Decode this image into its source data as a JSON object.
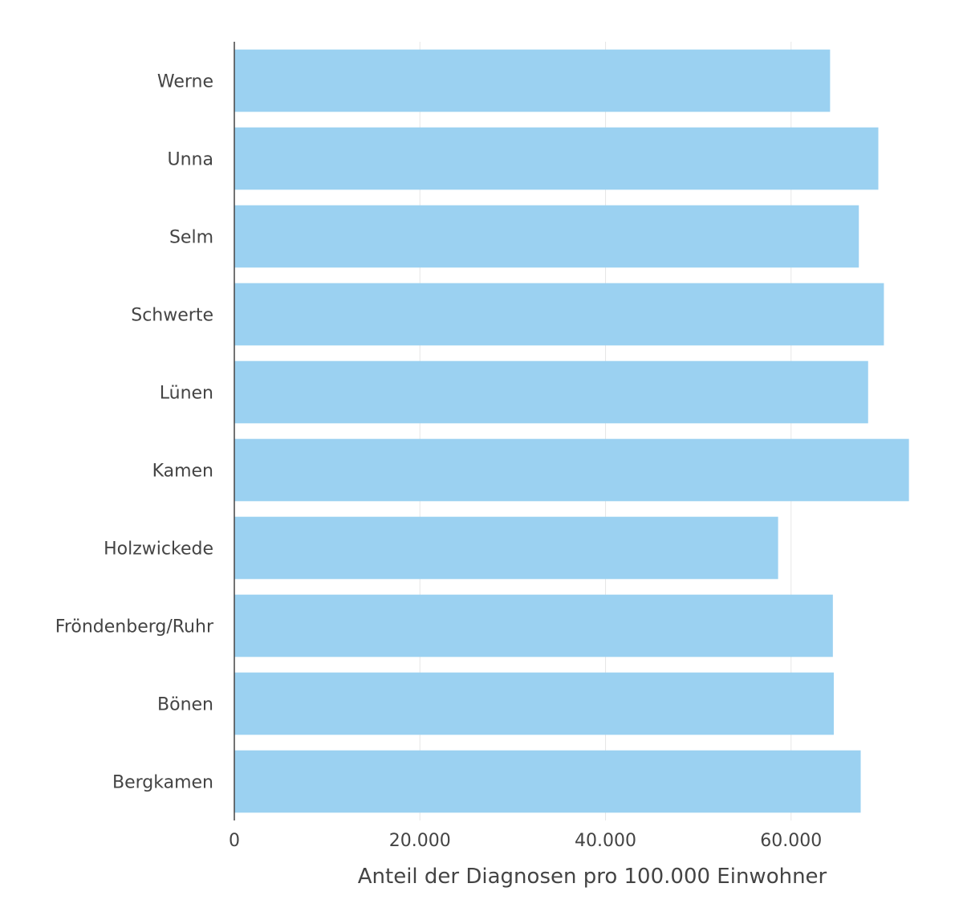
{
  "chart_data": {
    "type": "bar",
    "orientation": "horizontal",
    "categories": [
      "Werne",
      "Unna",
      "Selm",
      "Schwerte",
      "Lünen",
      "Kamen",
      "Holzwickede",
      "Fröndenberg/Ruhr",
      "Bönen",
      "Bergkamen"
    ],
    "values": [
      64200,
      69400,
      67300,
      70000,
      68300,
      72700,
      58600,
      64500,
      64600,
      67500
    ],
    "xlabel": "Anteil der Diagnosen pro 100.000 Einwohner",
    "ylabel": "",
    "xlim": [
      0,
      74200
    ],
    "xticks": [
      0,
      20000,
      40000,
      60000
    ],
    "xtick_labels": [
      "0",
      "20.000",
      "40.000",
      "60.000"
    ],
    "grid": true,
    "bar_color": "#9bd1f1"
  }
}
